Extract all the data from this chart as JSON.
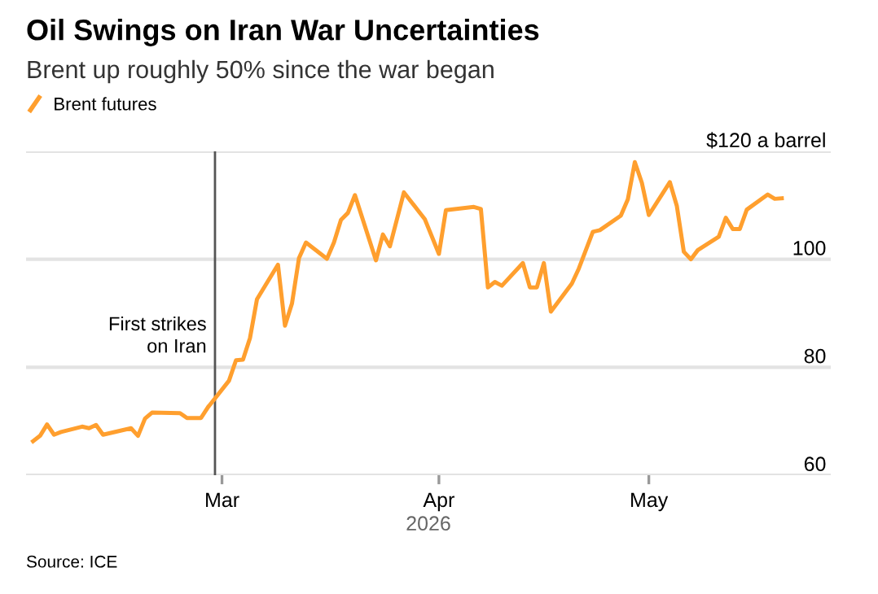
{
  "chart_data": {
    "type": "line",
    "title": "Oil Swings on Iran War Uncertainties",
    "subtitle": "Brent up roughly 50% since the war began",
    "xlabel": "2026",
    "annotations": [
      "Source: ICE"
    ],
    "x": [
      "2026-02-02",
      "2026-02-03",
      "2026-02-04",
      "2026-02-05",
      "2026-02-06",
      "2026-02-09",
      "2026-02-10",
      "2026-02-11",
      "2026-02-12",
      "2026-02-16",
      "2026-02-17",
      "2026-02-18",
      "2026-02-19",
      "2026-02-23",
      "2026-02-24",
      "2026-02-26",
      "2026-02-27",
      "2026-03-02",
      "2026-03-03",
      "2026-03-04",
      "2026-03-05",
      "2026-03-06",
      "2026-03-09",
      "2026-03-10",
      "2026-03-11",
      "2026-03-12",
      "2026-03-13",
      "2026-03-16",
      "2026-03-17",
      "2026-03-18",
      "2026-03-19",
      "2026-03-20",
      "2026-03-23",
      "2026-03-24",
      "2026-03-25",
      "2026-03-27",
      "2026-03-30",
      "2026-04-01",
      "2026-04-02",
      "2026-04-06",
      "2026-04-07",
      "2026-04-08",
      "2026-04-09",
      "2026-04-10",
      "2026-04-13",
      "2026-04-14",
      "2026-04-15",
      "2026-04-16",
      "2026-04-17",
      "2026-04-20",
      "2026-04-21",
      "2026-04-23",
      "2026-04-24",
      "2026-04-27",
      "2026-04-28",
      "2026-04-29",
      "2026-04-30",
      "2026-05-01",
      "2026-05-04",
      "2026-05-05",
      "2026-05-06",
      "2026-05-07",
      "2026-05-08",
      "2026-05-11",
      "2026-05-12",
      "2026-05-13",
      "2026-05-14",
      "2026-05-15",
      "2026-05-18",
      "2026-05-19",
      "2026-05-20"
    ],
    "series": [
      {
        "name": "Brent futures",
        "color": "#ff9f2e",
        "values": [
          66.3,
          67.3,
          69.4,
          67.5,
          68.0,
          69.0,
          68.7,
          69.3,
          67.5,
          68.7,
          67.3,
          70.5,
          71.6,
          71.5,
          70.6,
          70.6,
          72.6,
          77.5,
          81.3,
          81.4,
          85.4,
          92.6,
          99.0,
          87.7,
          91.8,
          100.2,
          103.1,
          100.1,
          103.1,
          107.3,
          108.6,
          111.9,
          99.8,
          104.6,
          102.4,
          112.4,
          107.4,
          101.0,
          109.1,
          109.7,
          109.3,
          94.8,
          95.8,
          95.1,
          99.3,
          94.8,
          94.8,
          99.3,
          90.3,
          95.5,
          98.3,
          105.1,
          105.4,
          108.1,
          111.1,
          118.0,
          114.2,
          108.2,
          114.3,
          109.9,
          101.4,
          100.0,
          101.7,
          104.2,
          107.7,
          105.6,
          105.6,
          109.2,
          112.0,
          111.2,
          111.3
        ]
      }
    ],
    "xlim": [
      "2026-02-01",
      "2026-05-27"
    ],
    "xticks": [
      {
        "value": "2026-03-01",
        "label": "Mar"
      },
      {
        "value": "2026-04-01",
        "label": "Apr"
      },
      {
        "value": "2026-05-01",
        "label": "May"
      }
    ],
    "ylim": [
      60,
      120
    ],
    "yticks": [
      60,
      80,
      100,
      {
        "value": 120,
        "label": "$120 a barrel"
      }
    ],
    "ref_lines": [
      {
        "axis": "x",
        "value": "2026-02-28",
        "label": "First strikes\non Iran",
        "color": "#555555"
      }
    ],
    "grid": "y",
    "legend": "top left",
    "marker": "none",
    "line_style": "solid"
  }
}
